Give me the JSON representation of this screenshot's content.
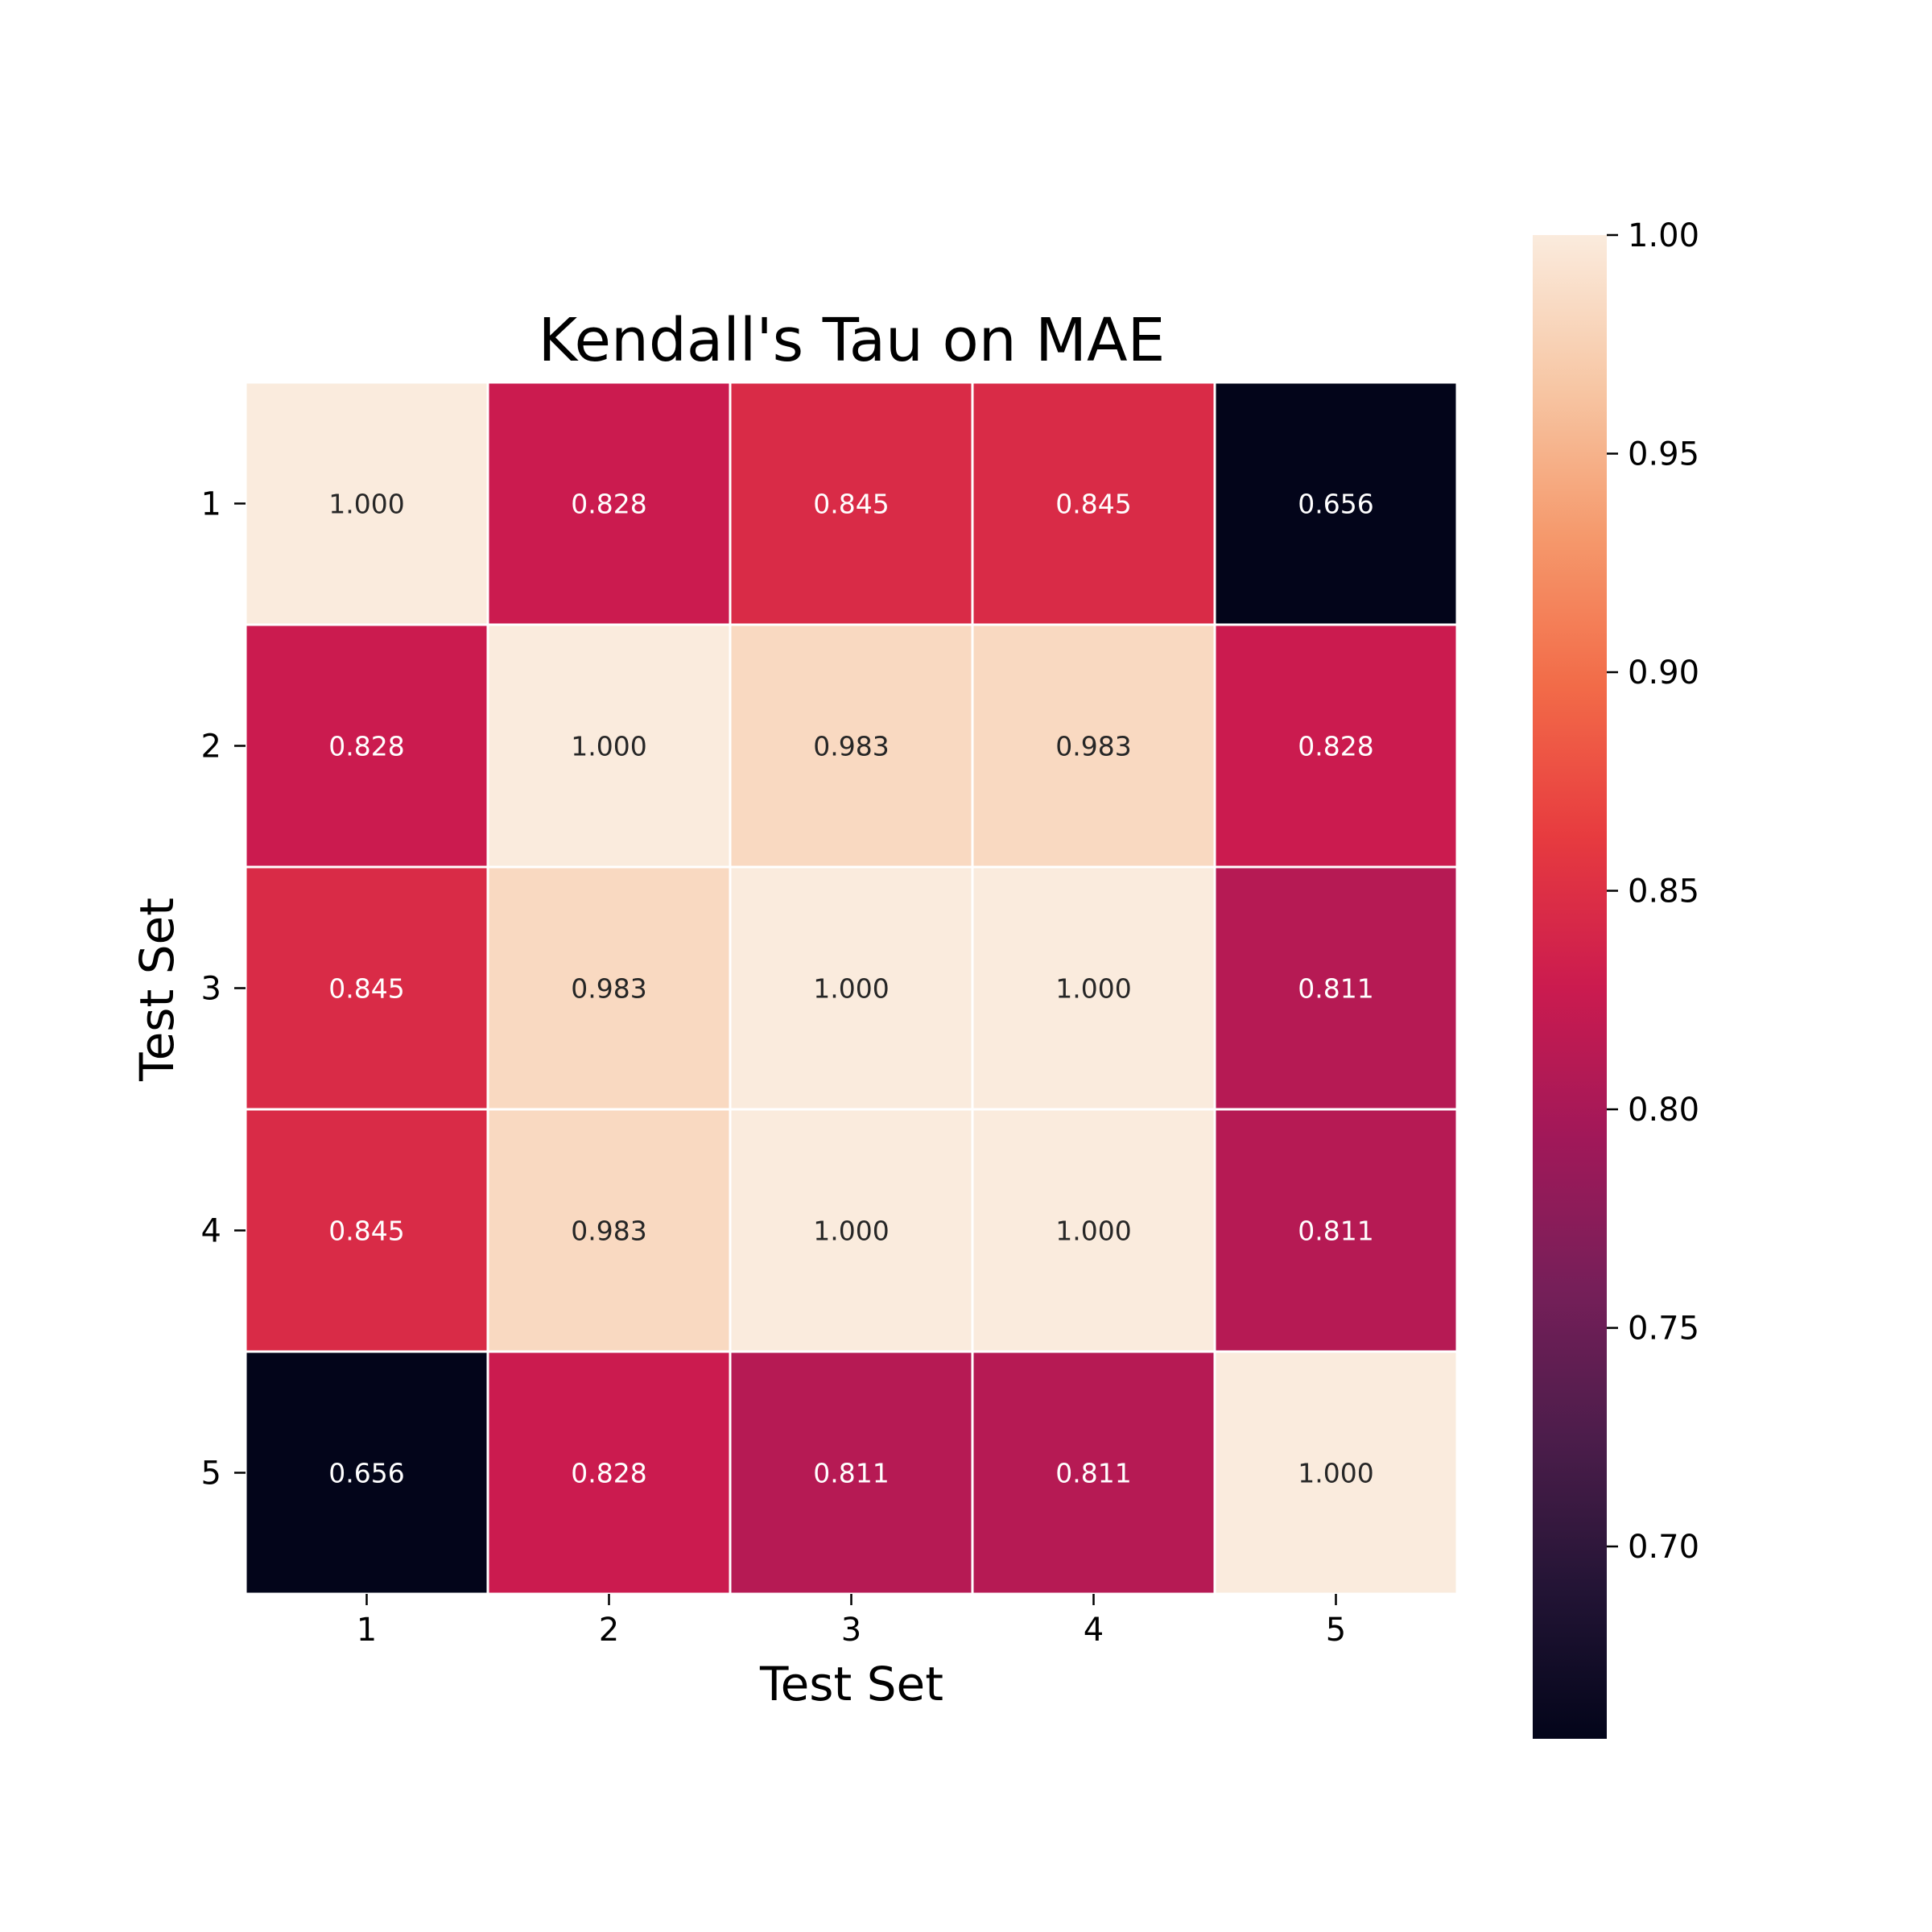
{
  "chart_data": {
    "type": "heatmap",
    "title": "Kendall's Tau on MAE",
    "xlabel": "Test Set",
    "ylabel": "Test Set",
    "x_categories": [
      "1",
      "2",
      "3",
      "4",
      "5"
    ],
    "y_categories": [
      "1",
      "2",
      "3",
      "4",
      "5"
    ],
    "values": [
      [
        1.0,
        0.828,
        0.845,
        0.845,
        0.656
      ],
      [
        0.828,
        1.0,
        0.983,
        0.983,
        0.828
      ],
      [
        0.845,
        0.983,
        1.0,
        1.0,
        0.811
      ],
      [
        0.845,
        0.983,
        1.0,
        1.0,
        0.811
      ],
      [
        0.656,
        0.828,
        0.811,
        0.811,
        1.0
      ]
    ],
    "value_format": "0.000",
    "colorbar": {
      "range": [
        0.656,
        1.0
      ],
      "ticks": [
        "0.70",
        "0.75",
        "0.80",
        "0.85",
        "0.90",
        "0.95",
        "1.00"
      ],
      "colormap": "rocket",
      "placement": "right"
    },
    "grid": false,
    "cell_border_color": "#ffffff"
  }
}
